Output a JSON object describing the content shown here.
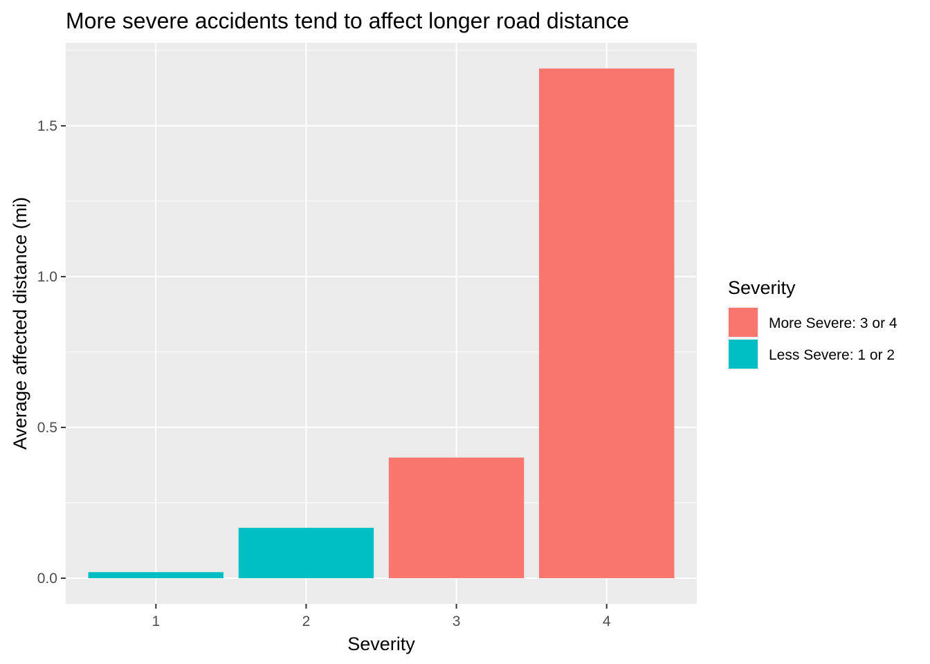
{
  "chart_data": {
    "type": "bar",
    "title": "More severe accidents tend to affect longer road distance",
    "xlabel": "Severity",
    "ylabel": "Average affected distance (mi)",
    "categories": [
      "1",
      "2",
      "3",
      "4"
    ],
    "values": [
      0.02,
      0.167,
      0.4,
      1.69
    ],
    "groups": [
      "Less Severe: 1 or 2",
      "Less Severe: 1 or 2",
      "More Severe: 3 or 4",
      "More Severe: 3 or 4"
    ],
    "ylim": [
      -0.085,
      1.775
    ],
    "yticks": [
      0.0,
      0.5,
      1.0,
      1.5
    ],
    "ytick_labels": [
      "0.0",
      "0.5",
      "1.0",
      "1.5"
    ],
    "grid": true,
    "legend": {
      "title": "Severity",
      "placement": "right",
      "entries": [
        {
          "label": "More Severe: 3 or 4",
          "color": "#F8766D"
        },
        {
          "label": "Less Severe: 1 or 2",
          "color": "#00BFC4"
        }
      ]
    },
    "colors": {
      "panel_background": "#EBEBEB",
      "grid": "#FFFFFF"
    }
  }
}
